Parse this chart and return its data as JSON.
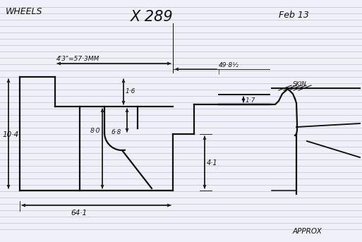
{
  "title": "X 289",
  "subtitle_left": "WHEELS",
  "subtitle_right": "Feb 13",
  "note_bottom_right": "APPROX",
  "dim_573": "4'3\"=57·3MM",
  "dim_498": "49·8½",
  "dim_16": "1·6",
  "dim_17": "1·7",
  "dim_104": "10·4",
  "dim_80": "8·0",
  "dim_68": "6·8",
  "dim_41": "4·1",
  "dim_641": "64·1",
  "skin": "SKIN",
  "bg_color": "#f0f0f8",
  "line_color": "#111111",
  "ruled_color": "#b8b8d8",
  "lw_main": 1.6,
  "lw_dim": 0.9,
  "lw_ruled": 0.45,
  "fig_w": 5.13,
  "fig_h": 3.43,
  "dpi": 100
}
